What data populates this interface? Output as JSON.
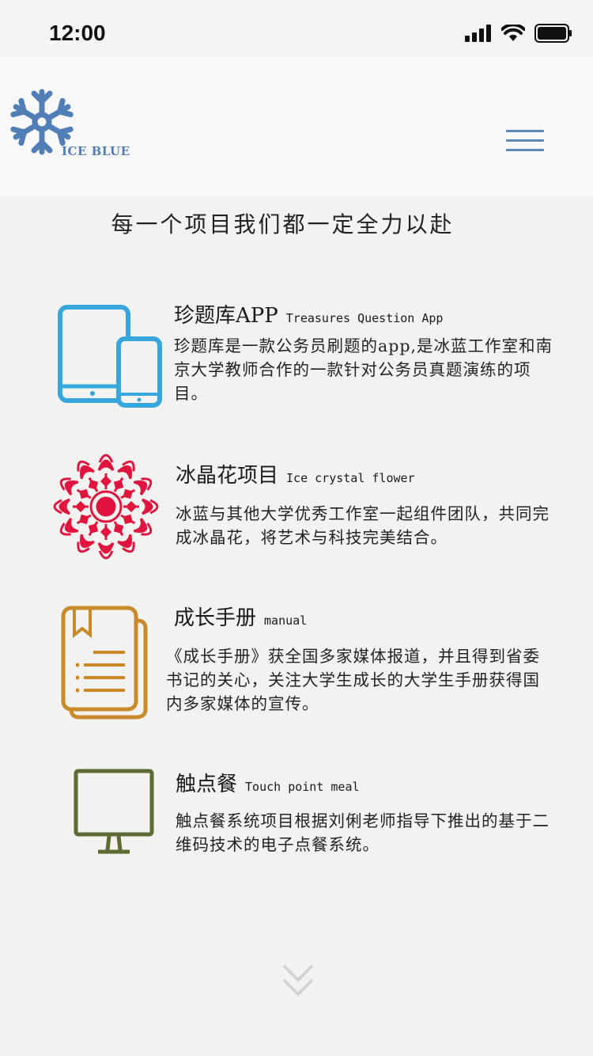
{
  "status_bar": {
    "time": "12:00"
  },
  "header": {
    "logo_text": "ICE BLUE"
  },
  "page": {
    "title": "每一个项目我们都一定全力以赴"
  },
  "projects": [
    {
      "title": "珍题库APP",
      "title_en": "Treasures Question App",
      "description": "珍题库是一款公务员刷题的app,是冰蓝工作室和南京大学教师合作的一款针对公务员真题演练的项目。",
      "icon": "tablet-phone-icon",
      "color": "#35a7dd"
    },
    {
      "title": "冰晶花项目",
      "title_en": "Ice crystal flower",
      "description": "冰蓝与其他大学优秀工作室一起组件团队，共同完成冰晶花，将艺术与科技完美结合。",
      "icon": "ice-crystal-flower-icon",
      "color": "#e0143c"
    },
    {
      "title": "成长手册",
      "title_en": "manual",
      "description": "《成长手册》获全国多家媒体报道，并且得到省委书记的关心，关注大学生成长的大学生手册获得国内多家媒体的宣传。",
      "icon": "document-stack-icon",
      "color": "#c88a2a"
    },
    {
      "title": "触点餐",
      "title_en": "Touch point meal",
      "description": "触点餐系统项目根据刘俐老师指导下推出的基于二维码技术的电子点餐系统。",
      "icon": "monitor-icon",
      "color": "#5c6b32"
    }
  ],
  "colors": {
    "brand_blue": "#5a89bd",
    "background": "#f2f3f1"
  }
}
